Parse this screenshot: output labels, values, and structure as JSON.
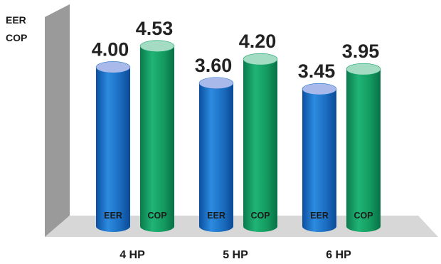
{
  "chart_data": {
    "type": "bar",
    "style": "3d-cylinder",
    "categories": [
      "4 HP",
      "5 HP",
      "6 HP"
    ],
    "series": [
      {
        "name": "EER",
        "values": [
          4.0,
          3.6,
          3.45
        ],
        "value_labels": [
          "4.00",
          "3.60",
          "3.45"
        ],
        "bar_label": "EER",
        "color": "#1f74c8",
        "cap_color": "#a9b9ea"
      },
      {
        "name": "COP",
        "values": [
          4.53,
          4.2,
          3.95
        ],
        "value_labels": [
          "4.53",
          "4.20",
          "3.95"
        ],
        "bar_label": "COP",
        "color": "#17a067",
        "cap_color": "#a3dcc3"
      }
    ],
    "legend_labels": [
      "EER",
      "COP"
    ],
    "ylim": [
      0,
      5
    ],
    "grid": false,
    "axis_wall_color": "#9a9a9a",
    "floor_color": "#d7d7d7"
  }
}
